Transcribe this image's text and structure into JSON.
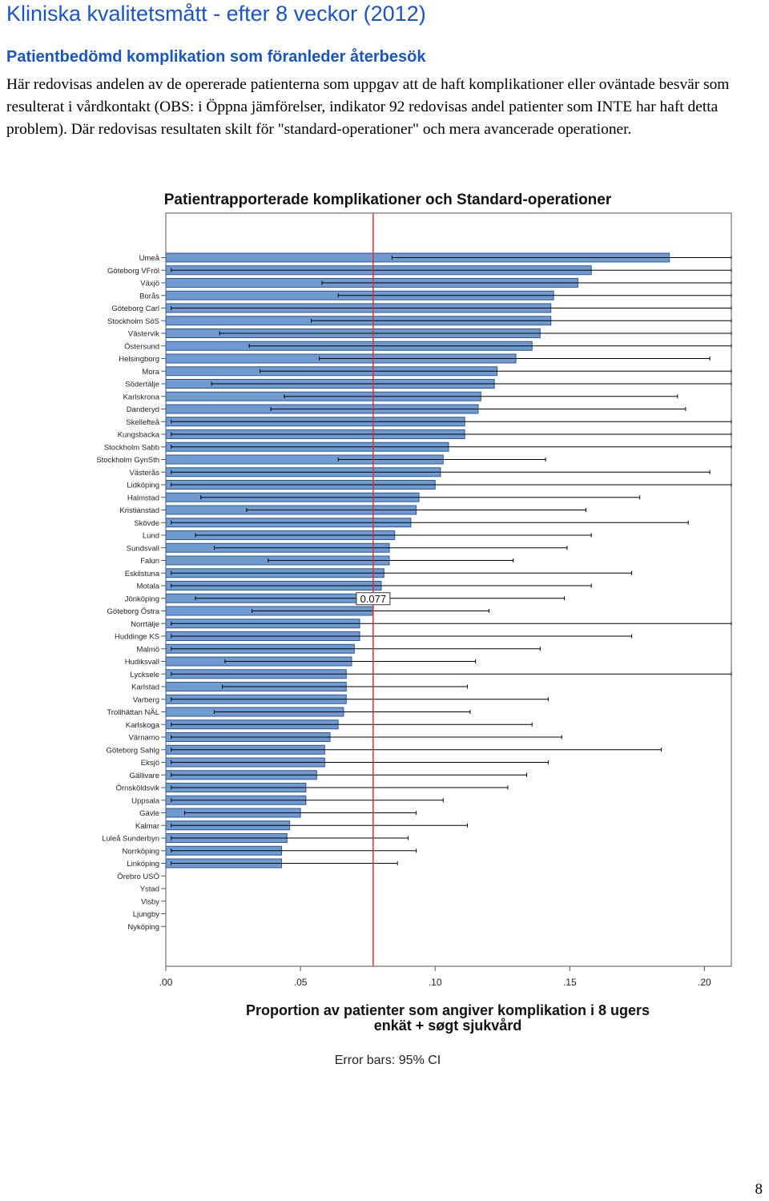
{
  "header": {
    "title": "Kliniska kvalitetsmått - efter 8 veckor (2012)",
    "subtitle": "Patientbedömd komplikation som föranleder återbesök",
    "description": "Här redovisas andelen av de opererade patienterna som uppgav att de haft komplikationer eller oväntade besvär som resulterat i vårdkontakt (OBS: i Öppna jämförelser, indikator 92 redovisas andel patienter som INTE har haft detta problem). Där redovisas resultaten skilt för \"standard-operationer\" och mera avancerade operationer."
  },
  "page_number": "8",
  "colors": {
    "title": "#1a55c4",
    "bar_fill": "#6f9bd1",
    "bar_stroke": "#2f5597",
    "reference_line": "#e03030"
  },
  "chart_data": {
    "type": "bar",
    "orientation": "horizontal",
    "title": "Patientrapporterade komplikationer och Standard-operationer",
    "xlabel": "Proportion av patienter som angiver komplikation i 8 ugers enkät + søgt sjukvård",
    "xlabel_lines": [
      "Proportion av patienter som angiver komplikation i 8 ugers",
      "enkät + søgt sjukvård"
    ],
    "note": "Error bars: 95% CI",
    "xlim": [
      0,
      0.21
    ],
    "xticks": [
      0,
      0.05,
      0.1,
      0.15,
      0.2
    ],
    "xtick_labels": [
      ".00",
      ".05",
      ".10",
      ".15",
      ".20"
    ],
    "reference_line": {
      "value": 0.077,
      "label": "0.077"
    },
    "grid": false,
    "categories": [
      "Umeå",
      "Göteborg VFröl",
      "Växjö",
      "Borås",
      "Göteborg Carl",
      "Stockholm SöS",
      "Västervik",
      "Östersund",
      "Helsingborg",
      "Mora",
      "Södertälje",
      "Karlskrona",
      "Danderyd",
      "Skellefteå",
      "Kungsbacka",
      "Stockholm Sabb",
      "Stockholm GynSth",
      "Västerås",
      "Lidköping",
      "Halmstad",
      "Kristianstad",
      "Skövde",
      "Lund",
      "Sundsvall",
      "Falun",
      "Eskilstuna",
      "Motala",
      "Jönköping",
      "Göteborg Östra",
      "Norrtälje",
      "Huddinge KS",
      "Malmö",
      "Hudiksvall",
      "Lycksele",
      "Karlstad",
      "Varberg",
      "Trollhättan NÄL",
      "Karlskoga",
      "Värnamo",
      "Göteborg Sahlg",
      "Eksjö",
      "Gällivare",
      "Örnsköldsvik",
      "Uppsala",
      "Gävle",
      "Kalmar",
      "Luleå Sunderbyn",
      "Norrköping",
      "Linköping",
      "Örebro USÖ",
      "Ystad",
      "Visby",
      "Ljungby",
      "Nyköping"
    ],
    "values": [
      0.187,
      0.158,
      0.153,
      0.144,
      0.143,
      0.143,
      0.139,
      0.136,
      0.13,
      0.123,
      0.122,
      0.117,
      0.116,
      0.111,
      0.111,
      0.105,
      0.103,
      0.102,
      0.1,
      0.094,
      0.093,
      0.091,
      0.085,
      0.083,
      0.083,
      0.081,
      0.08,
      0.079,
      0.077,
      0.072,
      0.072,
      0.07,
      0.069,
      0.067,
      0.067,
      0.067,
      0.066,
      0.064,
      0.061,
      0.059,
      0.059,
      0.056,
      0.052,
      0.052,
      0.05,
      0.046,
      0.045,
      0.043,
      0.043,
      0,
      0,
      0,
      0,
      0
    ],
    "ci_lower": [
      0.084,
      0.002,
      0.058,
      0.064,
      0.002,
      0.054,
      0.02,
      0.031,
      0.057,
      0.035,
      0.017,
      0.044,
      0.039,
      0.002,
      0.002,
      0.002,
      0.064,
      0.002,
      0.002,
      0.013,
      0.03,
      0.002,
      0.011,
      0.018,
      0.038,
      0.002,
      0.002,
      0.011,
      0.032,
      0.002,
      0.002,
      0.002,
      0.022,
      0.002,
      0.021,
      0.002,
      0.018,
      0.002,
      0.002,
      0.002,
      0.002,
      0.002,
      0.002,
      0.002,
      0.007,
      0.002,
      0.002,
      0.002,
      0.002,
      null,
      null,
      null,
      null,
      null
    ],
    "ci_upper": [
      0.21,
      0.21,
      0.21,
      0.21,
      0.21,
      0.21,
      0.21,
      0.21,
      0.202,
      0.21,
      0.21,
      0.19,
      0.193,
      0.21,
      0.21,
      0.21,
      0.141,
      0.202,
      0.21,
      0.176,
      0.156,
      0.194,
      0.158,
      0.149,
      0.129,
      0.173,
      0.158,
      0.148,
      0.12,
      0.21,
      0.173,
      0.139,
      0.115,
      0.21,
      0.112,
      0.142,
      0.113,
      0.136,
      0.147,
      0.184,
      0.142,
      0.134,
      0.127,
      0.103,
      0.093,
      0.112,
      0.09,
      0.093,
      0.086,
      null,
      null,
      null,
      null,
      null
    ]
  }
}
